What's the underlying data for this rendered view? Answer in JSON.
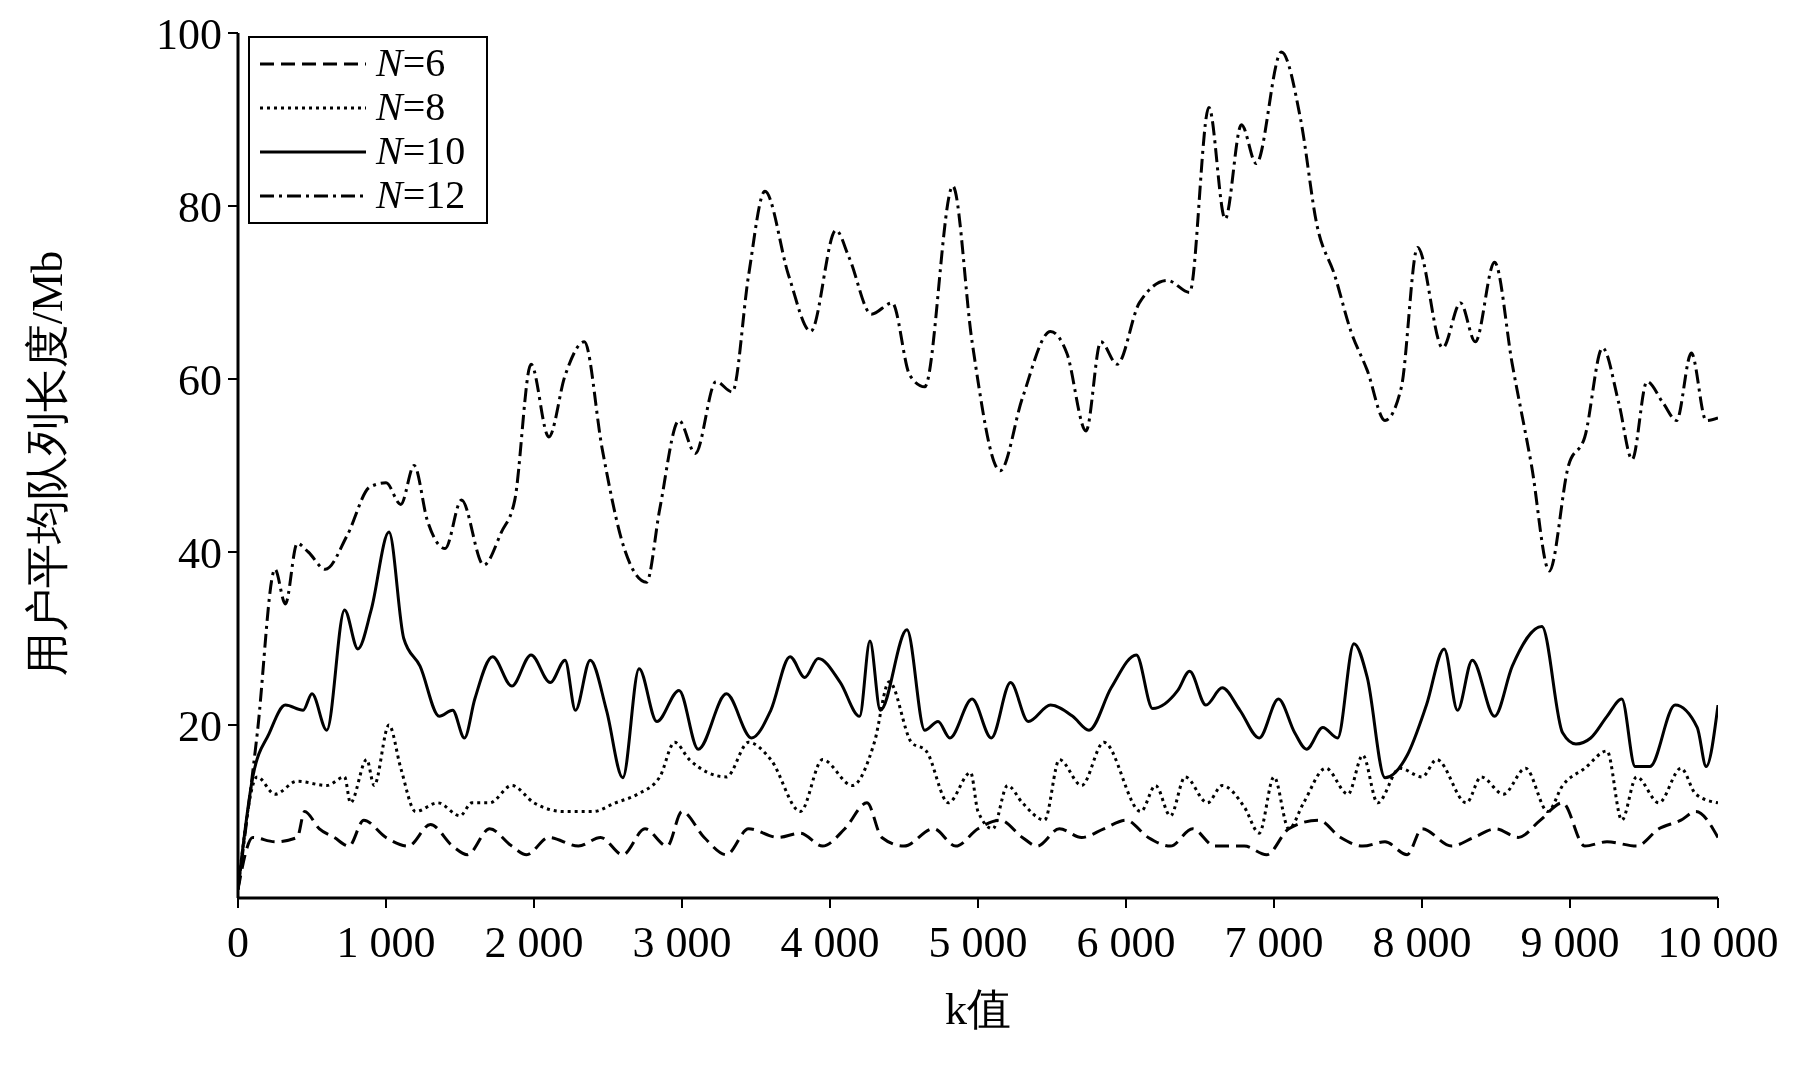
{
  "chart_data": {
    "type": "line",
    "xlabel": "k值",
    "ylabel": "用户平均队列长度/Mb",
    "xlim": [
      0,
      10000
    ],
    "ylim": [
      0,
      100
    ],
    "xticks": [
      0,
      {
        "value": 1000,
        "label": "1 000"
      },
      {
        "value": 2000,
        "label": "2 000"
      },
      {
        "value": 3000,
        "label": "3 000"
      },
      {
        "value": 4000,
        "label": "4 000"
      },
      {
        "value": 5000,
        "label": "5 000"
      },
      {
        "value": 6000,
        "label": "6 000"
      },
      {
        "value": 7000,
        "label": "7 000"
      },
      {
        "value": 8000,
        "label": "8 000"
      },
      {
        "value": 9000,
        "label": "9 000"
      },
      {
        "value": 10000,
        "label": "10 000"
      }
    ],
    "yticks": [
      20,
      40,
      60,
      80,
      100
    ],
    "grid": false,
    "legend": "top left",
    "marker": "none",
    "series": [
      {
        "name": "N=6",
        "color": "#000000",
        "line_style": "dashed",
        "x": [
          0,
          100,
          250,
          400,
          450,
          550,
          650,
          750,
          850,
          1000,
          1150,
          1300,
          1450,
          1550,
          1700,
          1850,
          1950,
          2100,
          2300,
          2450,
          2600,
          2750,
          2900,
          3000,
          3150,
          3300,
          3450,
          3650,
          3800,
          3950,
          4100,
          4250,
          4350,
          4500,
          4700,
          4850,
          5000,
          5150,
          5300,
          5400,
          5550,
          5700,
          5850,
          6000,
          6150,
          6300,
          6450,
          6600,
          6800,
          6950,
          7100,
          7300,
          7450,
          7600,
          7750,
          7900,
          8000,
          8200,
          8350,
          8500,
          8650,
          8800,
          8950,
          9100,
          9250,
          9450,
          9600,
          9750,
          9850,
          10000
        ],
        "values": [
          1,
          7,
          6.5,
          7,
          10,
          8,
          7,
          6,
          9,
          7,
          6,
          8.5,
          6,
          5,
          8,
          6,
          5,
          7,
          6,
          7,
          5,
          8,
          6,
          10,
          7,
          5,
          8,
          7,
          7.5,
          6,
          8,
          11,
          7,
          6,
          8,
          6,
          8,
          9,
          7,
          6,
          8,
          7,
          8,
          9,
          7,
          6,
          8,
          6,
          6,
          5,
          8,
          9,
          7,
          6,
          6.5,
          5,
          8,
          6,
          7,
          8,
          7,
          9,
          11,
          6,
          6.5,
          6,
          8,
          9,
          10,
          7
        ]
      },
      {
        "name": "N=8",
        "color": "#000000",
        "line_style": "dotted",
        "x": [
          0,
          130,
          250,
          400,
          600,
          720,
          760,
          870,
          920,
          1020,
          1100,
          1200,
          1350,
          1500,
          1580,
          1700,
          1850,
          2000,
          2200,
          2400,
          2550,
          2700,
          2850,
          2950,
          3050,
          3300,
          3450,
          3600,
          3800,
          3950,
          4150,
          4300,
          4400,
          4550,
          4650,
          4800,
          4950,
          5000,
          5100,
          5200,
          5300,
          5450,
          5550,
          5700,
          5850,
          6100,
          6200,
          6300,
          6400,
          6550,
          6650,
          6800,
          6900,
          7000,
          7100,
          7200,
          7350,
          7500,
          7600,
          7700,
          7850,
          8000,
          8100,
          8300,
          8400,
          8550,
          8700,
          8850,
          8950,
          9100,
          9250,
          9350,
          9450,
          9600,
          9750,
          9850,
          10000
        ],
        "values": [
          1,
          14,
          12,
          13.5,
          13,
          14,
          11,
          16,
          13,
          20,
          15,
          10,
          11,
          9.5,
          11,
          11,
          13,
          11,
          10,
          10,
          11,
          12,
          14,
          18,
          16,
          14,
          18,
          16,
          10,
          16,
          13,
          18,
          25,
          18,
          17,
          11,
          14.5,
          10,
          8,
          13,
          11,
          9,
          16,
          13,
          18,
          10,
          13,
          9.5,
          14,
          11,
          13,
          10.5,
          7.5,
          14,
          8,
          11,
          15,
          12,
          16.5,
          11,
          15,
          14,
          16,
          11,
          14,
          12,
          15,
          10,
          13,
          15,
          17,
          9,
          14,
          11,
          15,
          12,
          11
        ]
      },
      {
        "name": "N=10",
        "color": "#000000",
        "line_style": "solid",
        "x": [
          0,
          100,
          210,
          320,
          440,
          500,
          600,
          720,
          810,
          900,
          1020,
          1120,
          1230,
          1360,
          1450,
          1530,
          1600,
          1720,
          1850,
          1980,
          2110,
          2210,
          2280,
          2380,
          2490,
          2600,
          2710,
          2830,
          2980,
          3110,
          3300,
          3470,
          3600,
          3730,
          3830,
          3920,
          4070,
          4200,
          4270,
          4340,
          4520,
          4640,
          4730,
          4810,
          4960,
          5090,
          5220,
          5340,
          5490,
          5640,
          5750,
          5900,
          6070,
          6180,
          6350,
          6430,
          6540,
          6650,
          6770,
          6900,
          7030,
          7140,
          7220,
          7330,
          7430,
          7540,
          7630,
          7750,
          7900,
          8030,
          8150,
          8240,
          8340,
          8490,
          8610,
          8810,
          8950,
          9040,
          9140,
          9250,
          9350,
          9440,
          9540,
          9710,
          9860,
          9920,
          10000
        ],
        "values": [
          1,
          14,
          19,
          22.3,
          21.7,
          23.6,
          19.4,
          33.3,
          28.8,
          33.3,
          42.3,
          30,
          26.8,
          21,
          21.7,
          18.5,
          23,
          27.9,
          24.5,
          28.1,
          24.9,
          27.5,
          21.7,
          27.5,
          21.7,
          13.9,
          26.5,
          20.4,
          24,
          17.2,
          23.6,
          18.5,
          21.7,
          27.9,
          25.5,
          27.7,
          24.9,
          21,
          29.7,
          21.7,
          31,
          19.4,
          20.4,
          18.5,
          23,
          18.5,
          24.9,
          20.4,
          22.3,
          21,
          19.4,
          24.3,
          28.1,
          21.9,
          24,
          26.2,
          22.3,
          24.3,
          21.7,
          18.5,
          23,
          19.1,
          17.2,
          19.7,
          18.5,
          29.4,
          25.5,
          13.9,
          16.5,
          22.3,
          28.8,
          21.7,
          27.5,
          21,
          26.8,
          31.4,
          19.1,
          17.8,
          18.5,
          21,
          23,
          15.2,
          15.2,
          22.3,
          19.7,
          15.2,
          22.3
        ]
      },
      {
        "name": "N=12",
        "color": "#000000",
        "line_style": "dashdot",
        "x": [
          0,
          130,
          250,
          320,
          400,
          475,
          590,
          740,
          890,
          1000,
          1100,
          1190,
          1280,
          1400,
          1510,
          1660,
          1780,
          1870,
          1980,
          2100,
          2210,
          2340,
          2460,
          2610,
          2760,
          2850,
          2980,
          3090,
          3230,
          3340,
          3450,
          3560,
          3720,
          3870,
          4040,
          4130,
          4280,
          4420,
          4540,
          4640,
          4830,
          4960,
          5150,
          5300,
          5490,
          5600,
          5730,
          5830,
          5940,
          6090,
          6280,
          6430,
          6560,
          6670,
          6780,
          6880,
          7050,
          7180,
          7290,
          7410,
          7520,
          7630,
          7750,
          7860,
          7970,
          8140,
          8260,
          8360,
          8490,
          8610,
          8740,
          8860,
          8990,
          9100,
          9220,
          9330,
          9420,
          9520,
          9630,
          9720,
          9820,
          9920,
          10000
        ],
        "values": [
          1,
          19,
          38,
          34,
          41,
          40,
          38,
          42,
          47.5,
          48,
          45.5,
          50,
          43.6,
          40.4,
          46,
          38.5,
          42.3,
          46,
          61.7,
          53.3,
          60.4,
          64.3,
          52,
          40.4,
          36.5,
          45,
          55.2,
          51.4,
          59.7,
          58.5,
          72,
          81.7,
          72,
          65.5,
          77.2,
          74,
          67.5,
          68.8,
          60.4,
          59.1,
          82.3,
          64.3,
          49.4,
          57.8,
          65.5,
          63,
          54,
          64.3,
          61.7,
          68.8,
          71.4,
          70,
          91.4,
          78.5,
          89.4,
          84.9,
          97.8,
          90,
          77.8,
          72,
          65.5,
          61,
          55.2,
          59,
          75.2,
          63.6,
          68.8,
          64.3,
          73.5,
          61.7,
          50,
          37.8,
          50,
          53.3,
          63.6,
          57.2,
          50.7,
          59.7,
          57.2,
          55.2,
          63,
          55.2,
          55.5
        ]
      }
    ]
  }
}
